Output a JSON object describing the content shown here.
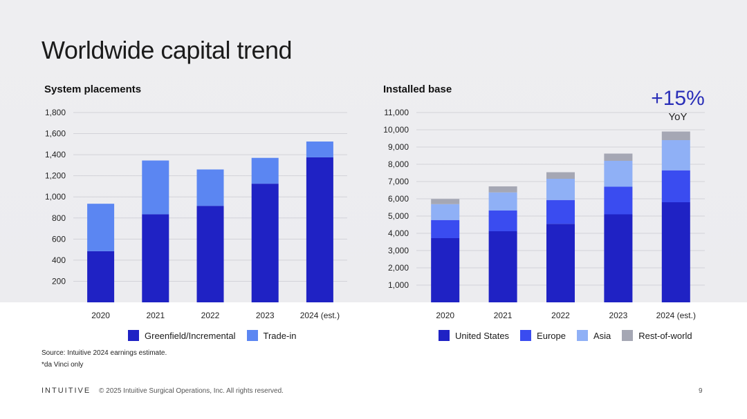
{
  "title": "Worldwide capital trend",
  "callout": {
    "value": "+15%",
    "label": "YoY"
  },
  "colors": {
    "greenfield": "#1f22c4",
    "tradein": "#5b86f2",
    "united_states": "#1f22c4",
    "europe": "#3a4cf0",
    "asia": "#8fb0f6",
    "rest_of_world": "#a5a7b4",
    "grid": "#d2d2d8",
    "background": "#ededf0"
  },
  "chart_data": [
    {
      "type": "bar",
      "stacked": true,
      "title": "System placements",
      "categories": [
        "2020",
        "2021",
        "2022",
        "2023",
        "2024 (est.)"
      ],
      "series": [
        {
          "name": "Greenfield/Incremental",
          "values": [
            485,
            835,
            915,
            1125,
            1375
          ]
        },
        {
          "name": "Trade-in",
          "values": [
            450,
            510,
            345,
            245,
            150
          ]
        }
      ],
      "yticks": [
        "200",
        "400",
        "600",
        "800",
        "1,000",
        "1,200",
        "1,400",
        "1,600",
        "1,800"
      ],
      "ylim": [
        0,
        1800
      ],
      "grid": true,
      "legend": "bottom"
    },
    {
      "type": "bar",
      "stacked": true,
      "title": "Installed base",
      "categories": [
        "2020",
        "2021",
        "2022",
        "2023",
        "2024 (est.)"
      ],
      "series": [
        {
          "name": "United States",
          "values": [
            3720,
            4120,
            4550,
            5100,
            5800
          ]
        },
        {
          "name": "Europe",
          "values": [
            1050,
            1200,
            1380,
            1600,
            1850
          ]
        },
        {
          "name": "Asia",
          "values": [
            920,
            1050,
            1230,
            1500,
            1750
          ]
        },
        {
          "name": "Rest-of-world",
          "values": [
            300,
            350,
            380,
            420,
            500
          ]
        }
      ],
      "yticks": [
        "1,000",
        "2,000",
        "3,000",
        "4,000",
        "5,000",
        "6,000",
        "7,000",
        "8,000",
        "9,000",
        "10,000",
        "11,000"
      ],
      "ylim": [
        0,
        11000
      ],
      "grid": true,
      "legend": "bottom"
    }
  ],
  "source_note": "Source: Intuitive 2024 earnings estimate.",
  "footnote": "*da Vinci only",
  "footer": {
    "logo": "INTUITIVE",
    "copyright": "© 2025 Intuitive Surgical Operations, Inc. All rights reserved.",
    "page": "9"
  }
}
